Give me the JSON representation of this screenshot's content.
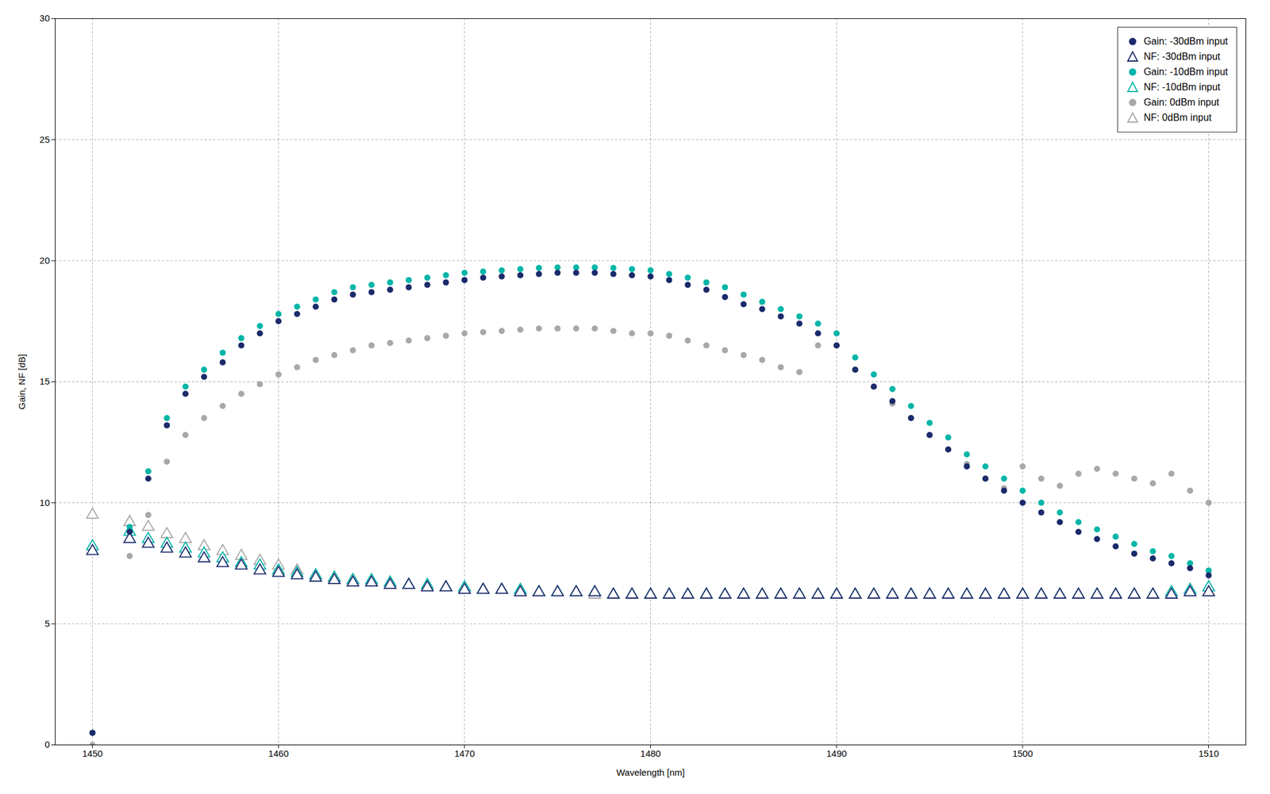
{
  "chart_data": {
    "type": "scatter",
    "xlabel": "Wavelength [nm]",
    "ylabel": "Gain, NF [dB]",
    "x": [
      1450,
      1452,
      1453,
      1454,
      1455,
      1456,
      1457,
      1458,
      1459,
      1460,
      1461,
      1462,
      1463,
      1464,
      1465,
      1466,
      1467,
      1468,
      1469,
      1470,
      1471,
      1472,
      1473,
      1474,
      1475,
      1476,
      1477,
      1478,
      1479,
      1480,
      1481,
      1482,
      1483,
      1484,
      1485,
      1486,
      1487,
      1488,
      1489,
      1490,
      1491,
      1492,
      1493,
      1494,
      1495,
      1496,
      1497,
      1498,
      1499,
      1500,
      1501,
      1502,
      1503,
      1504,
      1505,
      1506,
      1507,
      1508,
      1509,
      1510
    ],
    "series": [
      {
        "name": "Gain: -30dBm input",
        "color": "#1b2a6b",
        "marker": "circle",
        "values": [
          0.5,
          8.8,
          11.0,
          13.2,
          14.5,
          15.2,
          15.8,
          16.5,
          17.0,
          17.5,
          17.8,
          18.1,
          18.4,
          18.6,
          18.7,
          18.8,
          18.9,
          19.0,
          19.1,
          19.2,
          19.3,
          19.35,
          19.4,
          19.45,
          19.5,
          19.5,
          19.5,
          19.45,
          19.4,
          19.35,
          19.2,
          19.0,
          18.8,
          18.5,
          18.2,
          18.0,
          17.7,
          17.4,
          17.0,
          16.5,
          15.5,
          14.8,
          14.2,
          13.5,
          12.8,
          12.2,
          11.5,
          11.0,
          10.5,
          10.0,
          9.6,
          9.2,
          8.8,
          8.5,
          8.2,
          7.9,
          7.7,
          7.5,
          7.3,
          7.0
        ]
      },
      {
        "name": "NF: -30dBm input",
        "color": "#1b2a6b",
        "marker": "triangle",
        "values": [
          8.0,
          8.5,
          8.3,
          8.1,
          7.9,
          7.7,
          7.5,
          7.4,
          7.2,
          7.1,
          7.0,
          6.9,
          6.8,
          6.7,
          6.7,
          6.6,
          6.6,
          6.5,
          6.5,
          6.4,
          6.4,
          6.4,
          6.3,
          6.3,
          6.3,
          6.3,
          6.3,
          6.2,
          6.2,
          6.2,
          6.2,
          6.2,
          6.2,
          6.2,
          6.2,
          6.2,
          6.2,
          6.2,
          6.2,
          6.2,
          6.2,
          6.2,
          6.2,
          6.2,
          6.2,
          6.2,
          6.2,
          6.2,
          6.2,
          6.2,
          6.2,
          6.2,
          6.2,
          6.2,
          6.2,
          6.2,
          6.2,
          6.2,
          6.3,
          6.3
        ]
      },
      {
        "name": "Gain: -10dBm input",
        "color": "#00b5a8",
        "marker": "circle",
        "values": [
          0.5,
          9.0,
          11.3,
          13.5,
          14.8,
          15.5,
          16.2,
          16.8,
          17.3,
          17.8,
          18.1,
          18.4,
          18.7,
          18.9,
          19.0,
          19.1,
          19.2,
          19.3,
          19.4,
          19.5,
          19.55,
          19.6,
          19.65,
          19.7,
          19.72,
          19.72,
          19.72,
          19.7,
          19.65,
          19.6,
          19.45,
          19.3,
          19.1,
          18.9,
          18.6,
          18.3,
          18.0,
          17.7,
          17.4,
          17.0,
          16.0,
          15.3,
          14.7,
          14.0,
          13.3,
          12.7,
          12.0,
          11.5,
          11.0,
          10.5,
          10.0,
          9.6,
          9.2,
          8.9,
          8.6,
          8.3,
          8.0,
          7.8,
          7.5,
          7.2
        ]
      },
      {
        "name": "NF: -10dBm input",
        "color": "#00b5a8",
        "marker": "triangle",
        "values": [
          8.2,
          8.8,
          8.5,
          8.3,
          8.1,
          7.9,
          7.7,
          7.5,
          7.4,
          7.2,
          7.1,
          7.0,
          6.9,
          6.8,
          6.8,
          6.7,
          6.6,
          6.6,
          6.5,
          6.5,
          6.4,
          6.4,
          6.4,
          6.3,
          6.3,
          6.3,
          6.3,
          6.2,
          6.2,
          6.2,
          6.2,
          6.2,
          6.2,
          6.2,
          6.2,
          6.2,
          6.2,
          6.2,
          6.2,
          6.2,
          6.2,
          6.2,
          6.2,
          6.2,
          6.2,
          6.2,
          6.2,
          6.2,
          6.2,
          6.2,
          6.2,
          6.2,
          6.2,
          6.2,
          6.2,
          6.2,
          6.2,
          6.3,
          6.4,
          6.5
        ]
      },
      {
        "name": "Gain: 0dBm input",
        "color": "#a8a8a8",
        "marker": "circle",
        "values": [
          0.0,
          7.8,
          9.5,
          11.7,
          12.8,
          13.5,
          14.0,
          14.5,
          14.9,
          15.3,
          15.6,
          15.9,
          16.1,
          16.3,
          16.5,
          16.6,
          16.7,
          16.8,
          16.9,
          17.0,
          17.05,
          17.1,
          17.15,
          17.2,
          17.2,
          17.2,
          17.2,
          17.1,
          17.0,
          17.0,
          16.9,
          16.7,
          16.5,
          16.3,
          16.1,
          15.9,
          15.6,
          15.4,
          16.5,
          16.5,
          15.5,
          14.8,
          14.1,
          13.5,
          12.8,
          12.2,
          11.6,
          11.0,
          10.6,
          11.5,
          11.0,
          10.7,
          11.2,
          11.4,
          11.2,
          11.0,
          10.8,
          11.2,
          10.5,
          10.0
        ]
      },
      {
        "name": "NF: 0dBm input",
        "color": "#a8a8a8",
        "marker": "triangle",
        "values": [
          9.5,
          9.2,
          9.0,
          8.7,
          8.5,
          8.2,
          8.0,
          7.8,
          7.6,
          7.4,
          7.2,
          7.0,
          6.9,
          6.8,
          6.7,
          6.7,
          6.6,
          6.5,
          6.5,
          6.4,
          6.4,
          6.4,
          6.3,
          6.3,
          6.3,
          6.3,
          6.2,
          6.2,
          6.2,
          6.2,
          6.2,
          6.2,
          6.2,
          6.2,
          6.2,
          6.2,
          6.2,
          6.2,
          6.2,
          6.2,
          6.2,
          6.2,
          6.2,
          6.2,
          6.2,
          6.2,
          6.2,
          6.2,
          6.2,
          6.2,
          6.2,
          6.2,
          6.2,
          6.2,
          6.2,
          6.2,
          6.2,
          6.3,
          6.4,
          6.5
        ]
      }
    ],
    "xlim": [
      1448,
      1512
    ],
    "ylim": [
      0,
      30
    ],
    "xticks": [
      1450,
      1460,
      1470,
      1480,
      1490,
      1500,
      1510
    ],
    "yticks": [
      0,
      5,
      10,
      15,
      20,
      25,
      30
    ],
    "grid": true,
    "legend": "upper right"
  }
}
